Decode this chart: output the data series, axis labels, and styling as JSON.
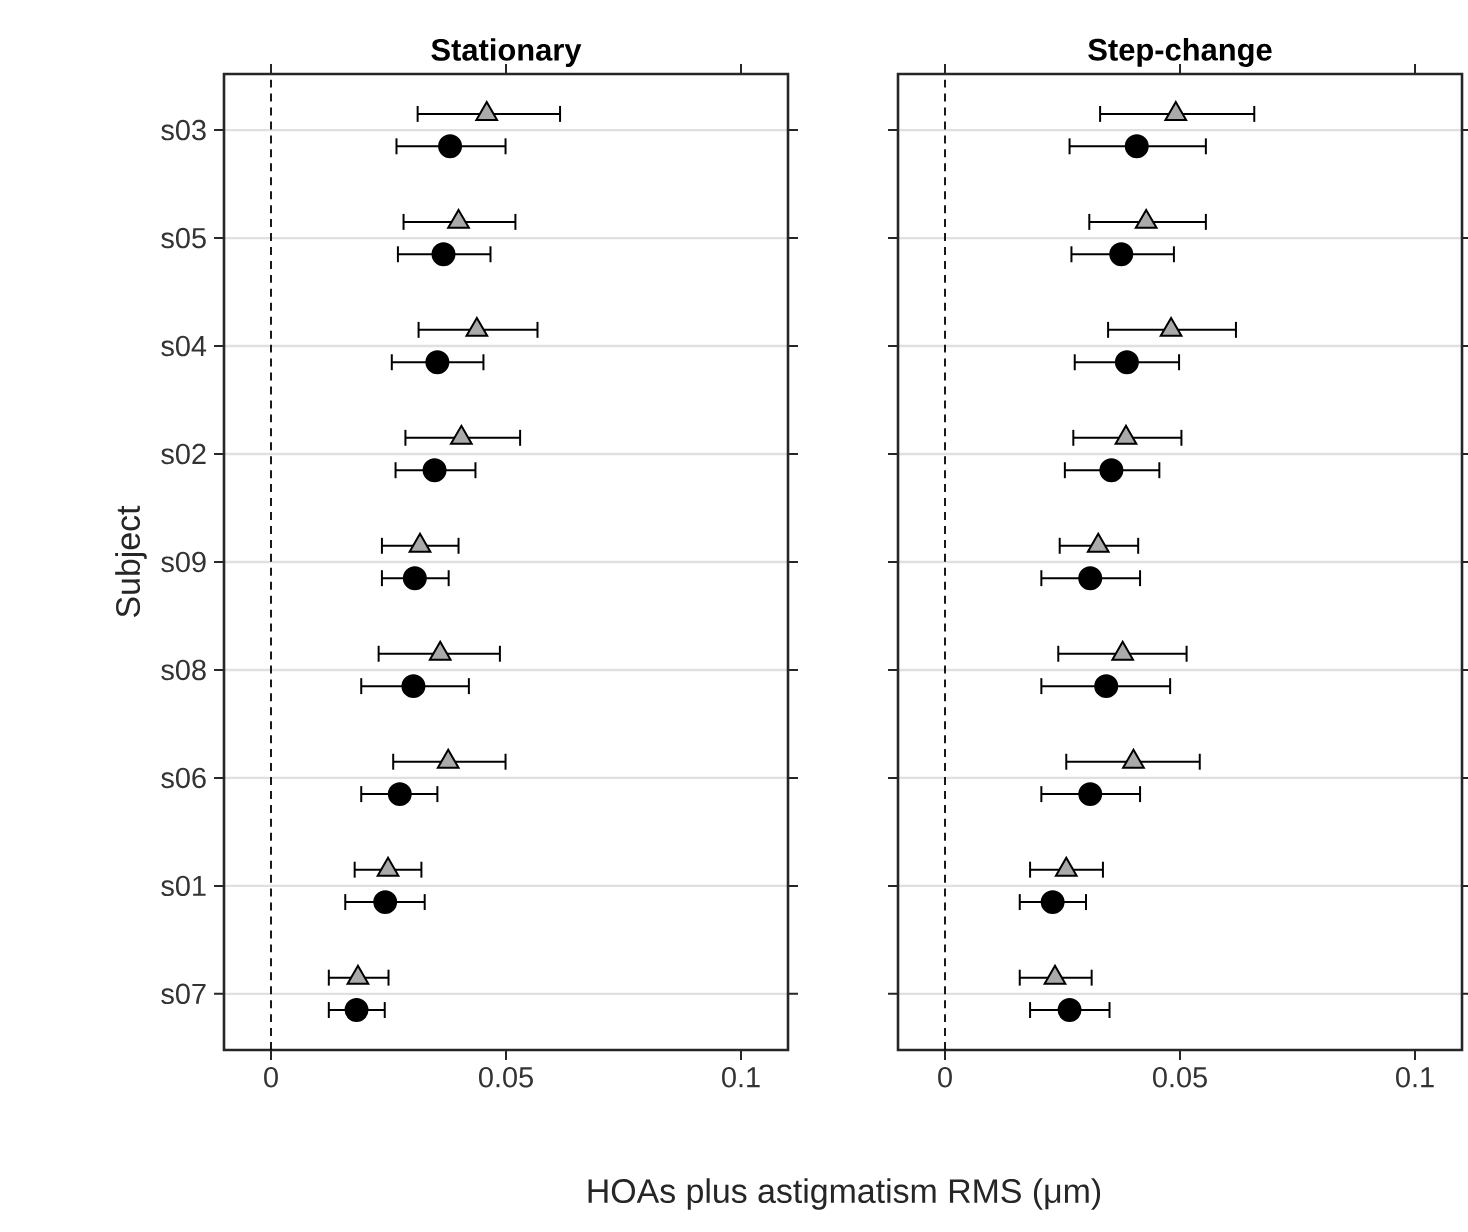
{
  "chart_data": [
    {
      "type": "scatter",
      "title": "Stationary",
      "ylabel": "Subject",
      "xlabel": "HOAs plus astigmatism RMS (μm)",
      "orientation": "horizontal",
      "categories": [
        "s03",
        "s05",
        "s04",
        "s02",
        "s09",
        "s08",
        "s06",
        "s01",
        "s07"
      ],
      "xlim": [
        -0.01,
        0.11
      ],
      "xticks": [
        0,
        0.05,
        0.1
      ],
      "grid": "y",
      "ref_lines": [
        {
          "axis": "x",
          "value": 0,
          "line_style": "dashed"
        }
      ],
      "series": [
        {
          "color": "#aaaaaa",
          "marker": "triangle",
          "values": [
            0.0459,
            0.0399,
            0.0438,
            0.0405,
            0.0317,
            0.036,
            0.0377,
            0.0249,
            0.0185
          ],
          "errors": [
            [
              0.0312,
              0.0615
            ],
            [
              0.0282,
              0.052
            ],
            [
              0.0314,
              0.0567
            ],
            [
              0.0286,
              0.053
            ],
            [
              0.0236,
              0.0399
            ],
            [
              0.0229,
              0.0487
            ],
            [
              0.026,
              0.0499
            ],
            [
              0.0178,
              0.032
            ],
            [
              0.0123,
              0.025
            ]
          ]
        },
        {
          "color": "#000000",
          "marker": "circle",
          "values": [
            0.0381,
            0.0367,
            0.0354,
            0.0348,
            0.0306,
            0.0303,
            0.0274,
            0.0243,
            0.0182
          ],
          "errors": [
            [
              0.0267,
              0.0499
            ],
            [
              0.027,
              0.0467
            ],
            [
              0.0257,
              0.0452
            ],
            [
              0.0265,
              0.0435
            ],
            [
              0.0236,
              0.0378
            ],
            [
              0.0192,
              0.0421
            ],
            [
              0.0192,
              0.0354
            ],
            [
              0.0158,
              0.0327
            ],
            [
              0.0123,
              0.0242
            ]
          ]
        }
      ]
    },
    {
      "type": "scatter",
      "title": "Step-change",
      "orientation": "horizontal",
      "xlim": [
        -0.01,
        0.11
      ],
      "xticks": [
        0,
        0.05,
        0.1
      ],
      "grid": "y",
      "tick_labels": "x",
      "ref_lines": [
        {
          "axis": "x",
          "value": 0,
          "line_style": "dashed"
        }
      ],
      "series": [
        {
          "color": "#aaaaaa",
          "marker": "triangle",
          "values": [
            0.0491,
            0.0428,
            0.0481,
            0.0385,
            0.0326,
            0.0378,
            0.0401,
            0.0258,
            0.0234
          ],
          "errors": [
            [
              0.033,
              0.0658
            ],
            [
              0.0307,
              0.0555
            ],
            [
              0.0347,
              0.0619
            ],
            [
              0.0273,
              0.0503
            ],
            [
              0.0244,
              0.0411
            ],
            [
              0.0241,
              0.0514
            ],
            [
              0.0258,
              0.0542
            ],
            [
              0.0181,
              0.0336
            ],
            [
              0.0159,
              0.0312
            ]
          ]
        },
        {
          "color": "#000000",
          "marker": "circle",
          "values": [
            0.0408,
            0.0375,
            0.0387,
            0.0354,
            0.0309,
            0.0343,
            0.0309,
            0.0229,
            0.0265
          ],
          "errors": [
            [
              0.0265,
              0.0555
            ],
            [
              0.0269,
              0.0487
            ],
            [
              0.0276,
              0.0498
            ],
            [
              0.0255,
              0.0456
            ],
            [
              0.0205,
              0.0415
            ],
            [
              0.0205,
              0.0479
            ],
            [
              0.0205,
              0.0415
            ],
            [
              0.0159,
              0.03
            ],
            [
              0.0181,
              0.035
            ]
          ]
        }
      ]
    }
  ]
}
